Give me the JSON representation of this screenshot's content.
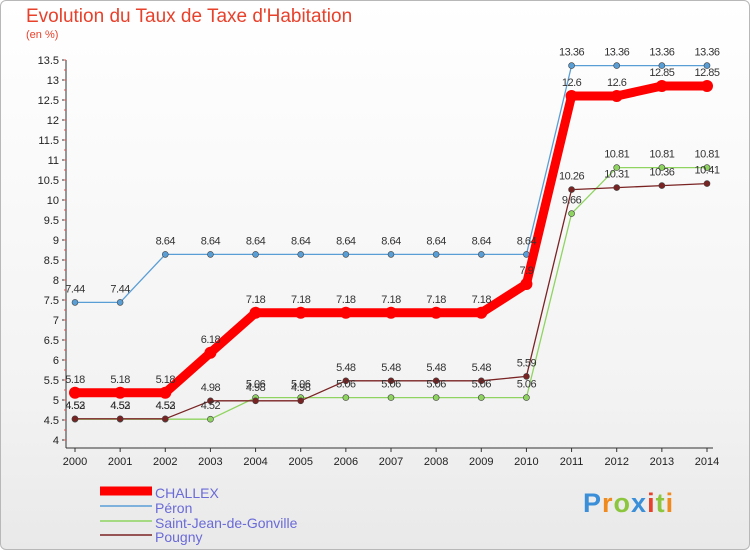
{
  "chart_data": {
    "type": "line",
    "title": "Evolution du Taux de Taxe d'Habitation",
    "subtitle": "(en %)",
    "x": [
      "2000",
      "2001",
      "2002",
      "2003",
      "2004",
      "2005",
      "2006",
      "2007",
      "2008",
      "2009",
      "2010",
      "2011",
      "2012",
      "2013",
      "2014"
    ],
    "yticks": [
      "4",
      "4.5",
      "5",
      "5.5",
      "6",
      "6.5",
      "7",
      "7.5",
      "8",
      "8.5",
      "9",
      "9.5",
      "10",
      "10.5",
      "11",
      "11.5",
      "12",
      "12.5",
      "13",
      "13.5"
    ],
    "ylim": [
      4,
      13.5
    ],
    "grid": false,
    "legend_position": "bottom-left",
    "series": [
      {
        "name": "Péron",
        "color": "#5a9ed6",
        "values": [
          7.44,
          7.44,
          8.64,
          8.64,
          8.64,
          8.64,
          8.64,
          8.64,
          8.64,
          8.64,
          8.64,
          13.36,
          13.36,
          13.36,
          13.36
        ],
        "labels": [
          "7.44",
          "7.44",
          "8.64",
          "8.64",
          "8.64",
          "8.64",
          "8.64",
          "8.64",
          "8.64",
          "8.64",
          "8.64",
          "13.36",
          "13.36",
          "13.36",
          "13.36"
        ]
      },
      {
        "name": "Saint-Jean-de-Gonville",
        "color": "#8fd460",
        "values": [
          4.52,
          4.52,
          4.52,
          4.52,
          5.06,
          5.06,
          5.06,
          5.06,
          5.06,
          5.06,
          5.06,
          9.66,
          10.81,
          10.81,
          10.81
        ],
        "labels": [
          "4.52",
          "4.52",
          "4.52",
          "4.52",
          "5.06",
          "5.06",
          "5.06",
          "5.06",
          "5.06",
          "5.06",
          "5.06",
          "9.66",
          "10.81",
          "10.81",
          "10.81"
        ]
      },
      {
        "name": "Pougny",
        "color": "#7a2323",
        "values": [
          4.53,
          4.53,
          4.53,
          4.98,
          4.98,
          4.98,
          5.48,
          5.48,
          5.48,
          5.48,
          5.59,
          10.26,
          10.31,
          10.36,
          10.41
        ],
        "labels": [
          "4.53",
          "4.53",
          "4.53",
          "4.98",
          "4.98",
          "4.98",
          "5.48",
          "5.48",
          "5.48",
          "5.48",
          "5.59",
          "10.26",
          "10.31",
          "10.36",
          "10.41"
        ]
      },
      {
        "name": "CHALLEX",
        "color": "#ff0000",
        "values": [
          5.18,
          5.18,
          5.18,
          6.18,
          7.18,
          7.18,
          7.18,
          7.18,
          7.18,
          7.18,
          7.9,
          12.6,
          12.6,
          12.85,
          12.85
        ],
        "labels": [
          "5.18",
          "5.18",
          "5.18",
          "6.18",
          "7.18",
          "7.18",
          "7.18",
          "7.18",
          "7.18",
          "7.18",
          "7.9",
          "12.6",
          "12.6",
          "12.85",
          "12.85"
        ]
      }
    ],
    "legend": [
      "CHALLEX",
      "Péron",
      "Saint-Jean-de-Gonville",
      "Pougny"
    ]
  },
  "brand": {
    "letters": [
      "P",
      "r",
      "o",
      "x",
      "i",
      "t",
      "i"
    ],
    "colors": [
      "#3b8fd8",
      "#f08a1c",
      "#8cc63f",
      "#3b8fd8",
      "#e8412b",
      "#8cc63f",
      "#f08a1c"
    ]
  }
}
